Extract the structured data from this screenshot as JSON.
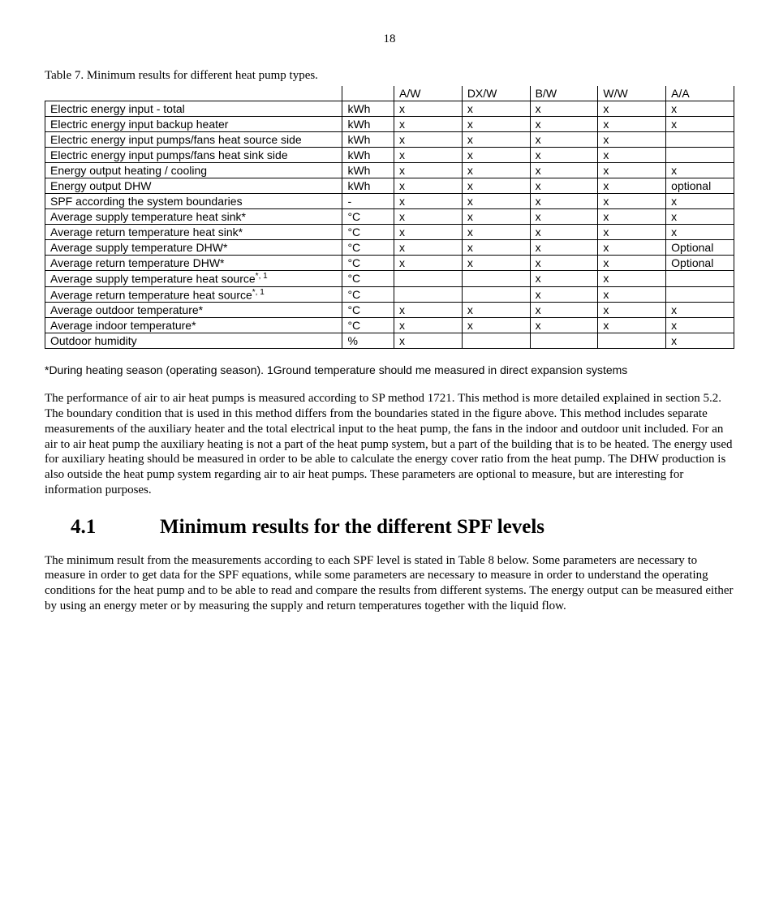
{
  "page_number": "18",
  "table_caption": "Table 7. Minimum results for different heat pump types.",
  "columns": [
    "",
    "",
    "A/W",
    "DX/W",
    "B/W",
    "W/W",
    "A/A"
  ],
  "rows": [
    {
      "label": "Electric energy input - total",
      "unit": "kWh",
      "vals": [
        "x",
        "x",
        "x",
        "x",
        "x"
      ]
    },
    {
      "label": "Electric energy input backup heater",
      "unit": "kWh",
      "vals": [
        "x",
        "x",
        "x",
        "x",
        "x"
      ]
    },
    {
      "label": "Electric energy input pumps/fans heat source side",
      "unit": "kWh",
      "vals": [
        "x",
        "x",
        "x",
        "x",
        ""
      ]
    },
    {
      "label": "Electric energy input pumps/fans heat sink side",
      "unit": "kWh",
      "vals": [
        "x",
        "x",
        "x",
        "x",
        ""
      ]
    },
    {
      "label": "Energy output heating / cooling",
      "unit": "kWh",
      "vals": [
        "x",
        "x",
        "x",
        "x",
        "x"
      ]
    },
    {
      "label": "Energy output DHW",
      "unit": "kWh",
      "vals": [
        "x",
        "x",
        "x",
        "x",
        "optional"
      ]
    },
    {
      "label": "SPF according the system boundaries",
      "unit": "-",
      "vals": [
        "x",
        "x",
        "x",
        "x",
        "x"
      ]
    },
    {
      "label": "Average supply temperature heat sink*",
      "unit": "°C",
      "vals": [
        "x",
        "x",
        "x",
        "x",
        "x"
      ]
    },
    {
      "label": "Average return temperature heat sink*",
      "unit": "°C",
      "vals": [
        "x",
        "x",
        "x",
        "x",
        "x"
      ]
    },
    {
      "label": "Average supply temperature DHW*",
      "unit": "°C",
      "vals": [
        "x",
        "x",
        "x",
        "x",
        "Optional"
      ]
    },
    {
      "label": "Average return temperature DHW*",
      "unit": "°C",
      "vals": [
        "x",
        "x",
        "x",
        "x",
        "Optional"
      ]
    },
    {
      "label": "Average supply temperature heat source",
      "sup": "*, 1",
      "unit": "°C",
      "vals": [
        "",
        "",
        "x",
        "x",
        ""
      ]
    },
    {
      "label": "Average return temperature heat source",
      "sup": "*, 1",
      "unit": "°C",
      "vals": [
        "",
        "",
        "x",
        "x",
        ""
      ]
    },
    {
      "label": "Average outdoor temperature*",
      "unit": "°C",
      "vals": [
        "x",
        "x",
        "x",
        "x",
        "x"
      ]
    },
    {
      "label": "Average indoor temperature*",
      "unit": "°C",
      "vals": [
        "x",
        "x",
        "x",
        "x",
        "x"
      ]
    },
    {
      "label": "Outdoor humidity",
      "unit": "%",
      "vals": [
        "x",
        "",
        "",
        "",
        "x"
      ]
    }
  ],
  "footnote": "*During heating season (operating season). 1Ground temperature should me measured in direct expansion systems",
  "para1": "The performance of air to air heat pumps is measured according to SP method 1721. This method is more detailed explained in section 5.2. The boundary condition that is used in this method differs from the boundaries stated in the figure above. This method includes separate measurements of the auxiliary heater and the total electrical input to the heat pump, the fans in the indoor and outdoor unit included. For an air to air heat pump the auxiliary heating is not a part of the heat pump system, but a part of the building that is to be heated. The energy used for auxiliary heating should be measured in order to be able to calculate the energy cover ratio from the heat pump. The DHW production is also outside the heat pump system regarding air to air heat pumps. These parameters are optional to measure, but are interesting for information purposes.",
  "section_number": "4.1",
  "section_title": "Minimum results for the different SPF levels",
  "para2": "The minimum result from the measurements according to each SPF level is stated in Table 8 below. Some parameters are necessary to measure in order to get data for the SPF equations, while some parameters are necessary to measure in order to understand the operating conditions for the heat pump and to be able to read and compare the results from different systems. The energy output can be measured either by using an energy meter or by measuring the supply and return temperatures together with the liquid flow."
}
